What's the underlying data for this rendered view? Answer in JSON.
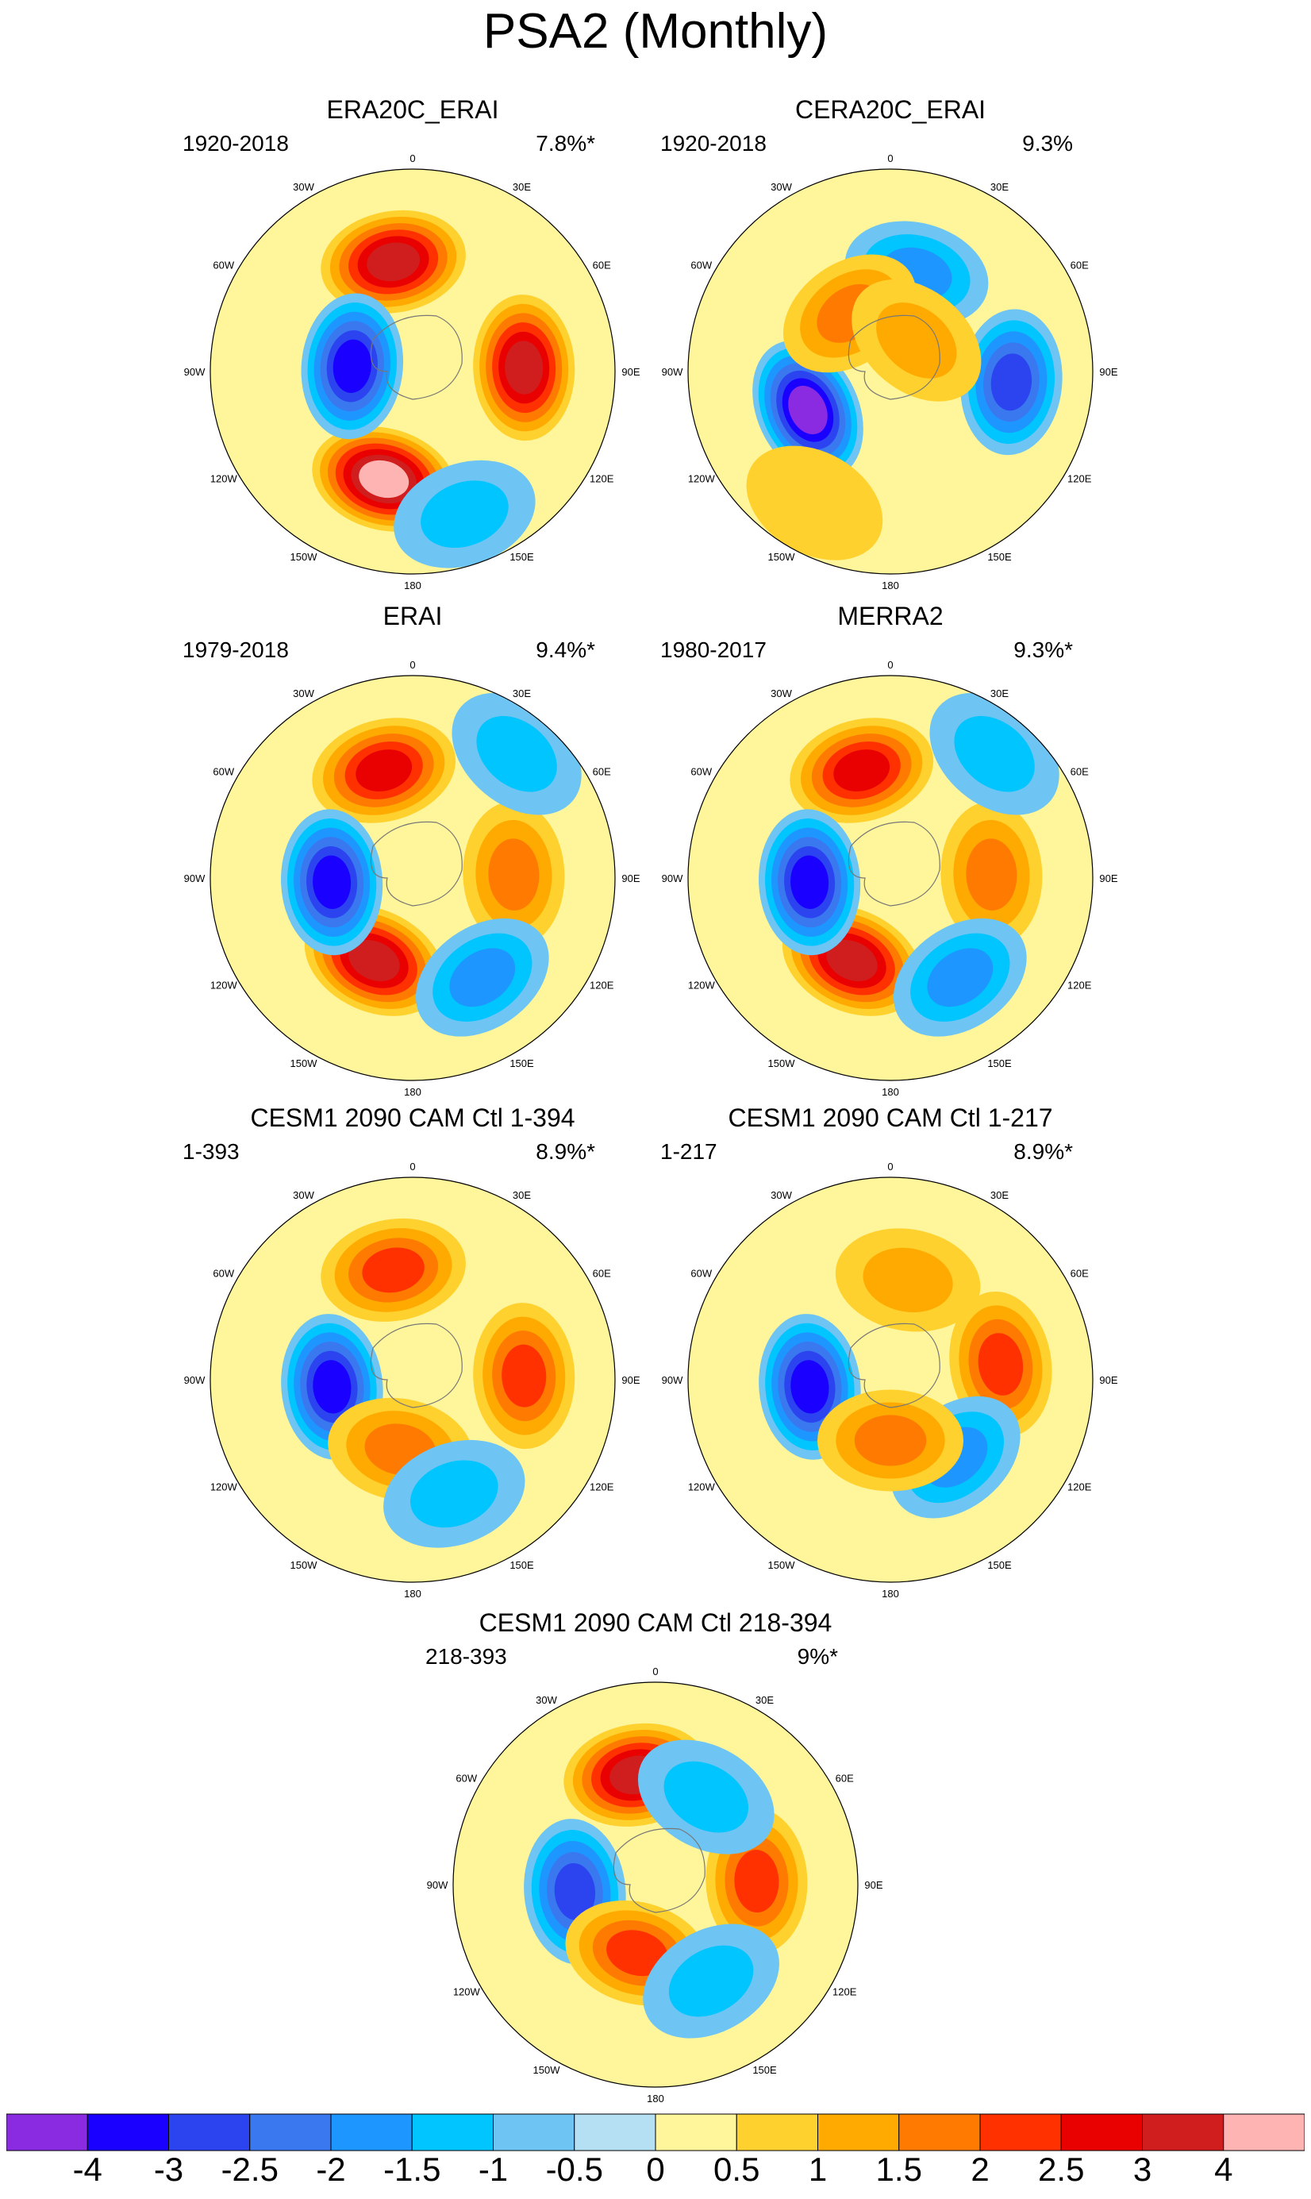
{
  "title": "PSA2 (Monthly)",
  "chart_data": [
    {
      "type": "contour-map",
      "title": "ERA20C_ERAI",
      "period": "1920-2018",
      "variance": "7.8%*",
      "lon_labels": [
        "0",
        "30E",
        "60E",
        "90E",
        "120E",
        "150E",
        "180",
        "150W",
        "120W",
        "90W",
        "60W",
        "30W"
      ],
      "centers": [
        {
          "lon": -10,
          "r": 0.55,
          "value": 3.0
        },
        {
          "lon": 88,
          "r": 0.55,
          "value": 3.0
        },
        {
          "lon": -165,
          "r": 0.55,
          "value": 4.0
        },
        {
          "lon": -85,
          "r": 0.3,
          "value": -3.5
        },
        {
          "lon": 160,
          "r": 0.75,
          "value": -1.0
        }
      ]
    },
    {
      "type": "contour-map",
      "title": "CERA20C_ERAI",
      "period": "1920-2018",
      "variance": "9.3%",
      "lon_labels": [
        "0",
        "30E",
        "60E",
        "90E",
        "120E",
        "150E",
        "180",
        "150W",
        "120W",
        "90W",
        "60W",
        "30W"
      ],
      "centers": [
        {
          "lon": 15,
          "r": 0.5,
          "value": -1.5
        },
        {
          "lon": 95,
          "r": 0.6,
          "value": -2.5
        },
        {
          "lon": -115,
          "r": 0.45,
          "value": -4.0
        },
        {
          "lon": -35,
          "r": 0.35,
          "value": 1.5
        },
        {
          "lon": 40,
          "r": 0.2,
          "value": 1.0
        },
        {
          "lon": -150,
          "r": 0.75,
          "value": 0.5
        }
      ]
    },
    {
      "type": "contour-map",
      "title": "ERAI",
      "period": "1979-2018",
      "variance": "9.4%*",
      "lon_labels": [
        "0",
        "30E",
        "60E",
        "90E",
        "120E",
        "150E",
        "180",
        "150W",
        "120W",
        "90W",
        "60W",
        "30W"
      ],
      "centers": [
        {
          "lon": -15,
          "r": 0.55,
          "value": 2.5
        },
        {
          "lon": 88,
          "r": 0.5,
          "value": 1.5
        },
        {
          "lon": -155,
          "r": 0.45,
          "value": 3.0
        },
        {
          "lon": -93,
          "r": 0.4,
          "value": -3.5
        },
        {
          "lon": 145,
          "r": 0.6,
          "value": -1.5
        },
        {
          "lon": 40,
          "r": 0.8,
          "value": -1.0
        }
      ]
    },
    {
      "type": "contour-map",
      "title": "MERRA2",
      "period": "1980-2017",
      "variance": "9.3%*",
      "lon_labels": [
        "0",
        "30E",
        "60E",
        "90E",
        "120E",
        "150E",
        "180",
        "150W",
        "120W",
        "90W",
        "60W",
        "30W"
      ],
      "centers": [
        {
          "lon": -15,
          "r": 0.55,
          "value": 2.5
        },
        {
          "lon": 88,
          "r": 0.5,
          "value": 1.5
        },
        {
          "lon": -155,
          "r": 0.45,
          "value": 3.5
        },
        {
          "lon": -93,
          "r": 0.4,
          "value": -3.5
        },
        {
          "lon": 145,
          "r": 0.6,
          "value": -1.5
        },
        {
          "lon": 40,
          "r": 0.8,
          "value": -1.0
        }
      ]
    },
    {
      "type": "contour-map",
      "title": "CESM1 2090 CAM Ctl 1-394",
      "period": "1-393",
      "variance": "8.9%*",
      "lon_labels": [
        "0",
        "30E",
        "60E",
        "90E",
        "120E",
        "150E",
        "180",
        "150W",
        "120W",
        "90W",
        "60W",
        "30W"
      ],
      "centers": [
        {
          "lon": -10,
          "r": 0.55,
          "value": 2.0
        },
        {
          "lon": 88,
          "r": 0.55,
          "value": 2.0
        },
        {
          "lon": -95,
          "r": 0.4,
          "value": -3.5
        },
        {
          "lon": -170,
          "r": 0.35,
          "value": 1.5
        },
        {
          "lon": 160,
          "r": 0.6,
          "value": -1.0
        }
      ]
    },
    {
      "type": "contour-map",
      "title": "CESM1 2090 CAM Ctl 1-217",
      "period": "1-217",
      "variance": "8.9%*",
      "lon_labels": [
        "0",
        "30E",
        "60E",
        "90E",
        "120E",
        "150E",
        "180",
        "150W",
        "120W",
        "90W",
        "60W",
        "30W"
      ],
      "centers": [
        {
          "lon": 10,
          "r": 0.5,
          "value": 1.0
        },
        {
          "lon": 82,
          "r": 0.55,
          "value": 2.0
        },
        {
          "lon": -95,
          "r": 0.4,
          "value": -3.5
        },
        {
          "lon": 140,
          "r": 0.5,
          "value": -1.5
        },
        {
          "lon": 180,
          "r": 0.3,
          "value": 1.5
        }
      ]
    },
    {
      "type": "contour-map",
      "title": "CESM1 2090 CAM Ctl 218-394",
      "period": "218-393",
      "variance": "9%*",
      "lon_labels": [
        "0",
        "30E",
        "60E",
        "90E",
        "120E",
        "150E",
        "180",
        "150W",
        "120W",
        "90W",
        "60W",
        "30W"
      ],
      "centers": [
        {
          "lon": -10,
          "r": 0.55,
          "value": 3.0
        },
        {
          "lon": 88,
          "r": 0.5,
          "value": 2.0
        },
        {
          "lon": -95,
          "r": 0.4,
          "value": -2.5
        },
        {
          "lon": -165,
          "r": 0.35,
          "value": 2.0
        },
        {
          "lon": 150,
          "r": 0.55,
          "value": -1.0
        },
        {
          "lon": 30,
          "r": 0.5,
          "value": -1.0
        }
      ]
    }
  ],
  "colorbar": {
    "labels": [
      "-4",
      "-3",
      "-2.5",
      "-2",
      "-1.5",
      "-1",
      "-0.5",
      "0",
      "0.5",
      "1",
      "1.5",
      "2",
      "2.5",
      "3",
      "4"
    ],
    "colors": [
      "#8a2be2",
      "#1a00ff",
      "#2b44f0",
      "#3a78ef",
      "#1e96ff",
      "#00c5ff",
      "#6ec4f2",
      "#b5dff3",
      "#fff59a",
      "#ffd12e",
      "#ffaa00",
      "#ff7a00",
      "#ff3100",
      "#e90000",
      "#d01e1e",
      "#ffb4b4"
    ]
  }
}
